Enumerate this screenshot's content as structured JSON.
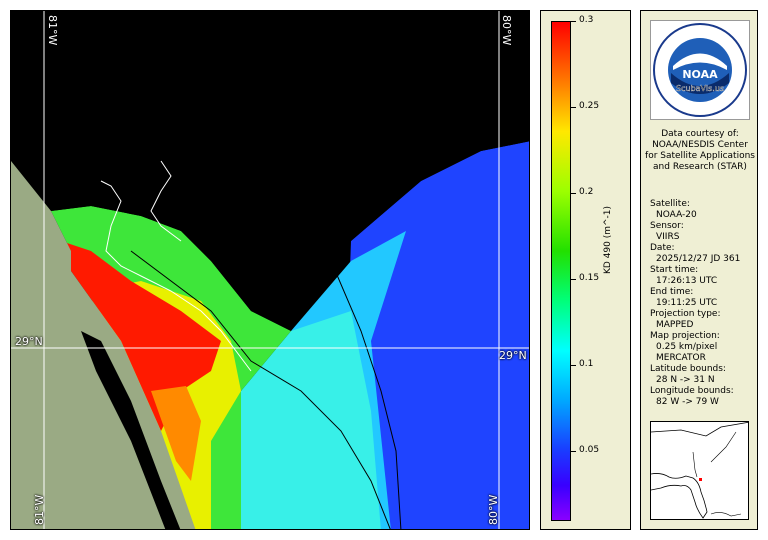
{
  "map": {
    "lon_top_left": "81°W",
    "lon_top_right": "80°W",
    "lon_bottom_left": "81°W",
    "lon_bottom_right": "80°W",
    "lat_left": "29°N",
    "lat_right": "29°N",
    "colors": {
      "land": "#9aaa84",
      "no_data": "#000000",
      "grid": "#ffffff"
    }
  },
  "colorbar": {
    "title": "KD 490 (m^-1)",
    "ticks": [
      "0.3",
      "0.25",
      "0.2",
      "0.15",
      "0.1",
      "0.05"
    ],
    "range": [
      0.01,
      0.3
    ]
  },
  "info": {
    "logo_text": "NOAA",
    "logo_ring_text": "NATIONAL OCEANIC AND ATMOSPHERIC ADMINISTRATION · U.S. DEPARTMENT OF COMMERCE",
    "watermark": "ScubaVis.us",
    "courtesy": "Data courtesy of: NOAA/NESDIS Center for Satellite Applications and Research (STAR)",
    "satellite_label": "Satellite:",
    "satellite": "NOAA-20",
    "sensor_label": "Sensor:",
    "sensor": "VIIRS",
    "date_label": "Date:",
    "date": "2025/12/27 JD 361",
    "start_label": "Start time:",
    "start": "17:26:13 UTC",
    "end_label": "End time:",
    "end": "19:11:25 UTC",
    "proj_label": "Projection type:",
    "proj": "MAPPED",
    "mapproj_label": "Map projection:",
    "mapproj_res": "0.25 km/pixel",
    "mapproj": "MERCATOR",
    "lat_label": "Latitude bounds:",
    "lat": "28 N -> 31 N",
    "lon_label": "Longitude bounds:",
    "lon": "82 W -> 79 W"
  }
}
